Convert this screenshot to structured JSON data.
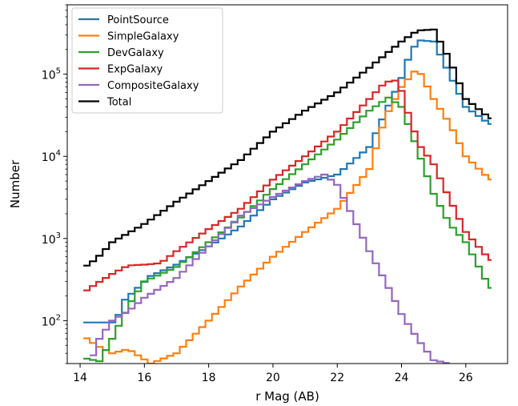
{
  "chart_data": {
    "type": "line",
    "style": "step",
    "xlabel": "r Mag (AB)",
    "ylabel": "Number",
    "xlim": [
      13.6,
      27.3
    ],
    "ylim": [
      30,
      700000
    ],
    "yscale": "log",
    "xticks": [
      14,
      16,
      18,
      20,
      22,
      24,
      26
    ],
    "yticks": [
      {
        "value": 100,
        "base": "10",
        "exp": "2"
      },
      {
        "value": 1000,
        "base": "10",
        "exp": "3"
      },
      {
        "value": 10000,
        "base": "10",
        "exp": "4"
      },
      {
        "value": 100000,
        "base": "10",
        "exp": "5"
      }
    ],
    "legend": {
      "placement": "top-left"
    },
    "grid": false,
    "series": [
      {
        "name": "PointSource",
        "color": "#1f77b4",
        "points": [
          [
            14.1,
            95
          ],
          [
            15.1,
            95
          ],
          [
            15.4,
            180
          ],
          [
            16.2,
            350
          ],
          [
            17,
            480
          ],
          [
            18,
            800
          ],
          [
            19,
            1400
          ],
          [
            20,
            3000
          ],
          [
            21,
            4800
          ],
          [
            22,
            6000
          ],
          [
            23,
            13000
          ],
          [
            24,
            90000
          ],
          [
            24.2,
            150000
          ],
          [
            24.5,
            260000
          ],
          [
            25,
            250000
          ],
          [
            25.5,
            100000
          ],
          [
            26,
            40000
          ],
          [
            26.8,
            24000
          ]
        ]
      },
      {
        "name": "SimpleGalaxy",
        "color": "#ff7f0e",
        "points": [
          [
            14.1,
            65
          ],
          [
            14.5,
            50
          ],
          [
            15,
            40
          ],
          [
            15.5,
            45
          ],
          [
            16.2,
            30
          ],
          [
            17,
            40
          ],
          [
            18,
            100
          ],
          [
            19,
            260
          ],
          [
            20,
            600
          ],
          [
            21,
            1200
          ],
          [
            22,
            2300
          ],
          [
            23,
            7000
          ],
          [
            23.5,
            30000
          ],
          [
            24,
            70000
          ],
          [
            24.5,
            120000
          ],
          [
            25,
            50000
          ],
          [
            25.5,
            25000
          ],
          [
            26,
            10000
          ],
          [
            26.8,
            5000
          ]
        ]
      },
      {
        "name": "DevGalaxy",
        "color": "#2ca02c",
        "points": [
          [
            14.1,
            35
          ],
          [
            14.6,
            32
          ],
          [
            15,
            60
          ],
          [
            15.5,
            150
          ],
          [
            16,
            300
          ],
          [
            17,
            450
          ],
          [
            18,
            900
          ],
          [
            19,
            1800
          ],
          [
            20,
            4000
          ],
          [
            21,
            8000
          ],
          [
            22,
            16000
          ],
          [
            23,
            36000
          ],
          [
            23.6,
            52000
          ],
          [
            24,
            40000
          ],
          [
            24.5,
            12000
          ],
          [
            25,
            3500
          ],
          [
            25.5,
            1500
          ],
          [
            26,
            900
          ],
          [
            26.8,
            230
          ]
        ]
      },
      {
        "name": "ExpGalaxy",
        "color": "#d62728",
        "points": [
          [
            14.1,
            220
          ],
          [
            14.5,
            280
          ],
          [
            15,
            370
          ],
          [
            15.5,
            470
          ],
          [
            16,
            480
          ],
          [
            16.5,
            500
          ],
          [
            17,
            700
          ],
          [
            18,
            1300
          ],
          [
            19,
            2300
          ],
          [
            20,
            5200
          ],
          [
            21,
            10000
          ],
          [
            22,
            20000
          ],
          [
            23,
            50000
          ],
          [
            23.5,
            80000
          ],
          [
            23.9,
            85000
          ],
          [
            24.3,
            25000
          ],
          [
            24.6,
            13000
          ],
          [
            25,
            8000
          ],
          [
            25.5,
            3000
          ],
          [
            26,
            1200
          ],
          [
            26.8,
            520
          ]
        ]
      },
      {
        "name": "CompositeGalaxy",
        "color": "#9467bd",
        "points": [
          [
            14.3,
            30
          ],
          [
            14.6,
            60
          ],
          [
            15,
            100
          ],
          [
            15.5,
            130
          ],
          [
            16,
            190
          ],
          [
            17,
            330
          ],
          [
            18,
            800
          ],
          [
            19,
            1900
          ],
          [
            20,
            3200
          ],
          [
            21,
            5000
          ],
          [
            21.6,
            6000
          ],
          [
            22,
            4500
          ],
          [
            22.5,
            1800
          ],
          [
            23,
            700
          ],
          [
            23.5,
            300
          ],
          [
            24,
            120
          ],
          [
            24.5,
            60
          ],
          [
            25,
            33
          ],
          [
            25.5,
            30
          ]
        ]
      },
      {
        "name": "Total",
        "color": "#000000",
        "points": [
          [
            14.1,
            440
          ],
          [
            14.5,
            560
          ],
          [
            15,
            900
          ],
          [
            16,
            1500
          ],
          [
            17,
            2800
          ],
          [
            18,
            5000
          ],
          [
            19,
            9000
          ],
          [
            20,
            20000
          ],
          [
            21,
            36000
          ],
          [
            22,
            60000
          ],
          [
            23,
            120000
          ],
          [
            24,
            250000
          ],
          [
            24.5,
            340000
          ],
          [
            25,
            350000
          ],
          [
            25.5,
            150000
          ],
          [
            26,
            50000
          ],
          [
            26.5,
            35000
          ],
          [
            26.8,
            28000
          ]
        ]
      }
    ]
  }
}
